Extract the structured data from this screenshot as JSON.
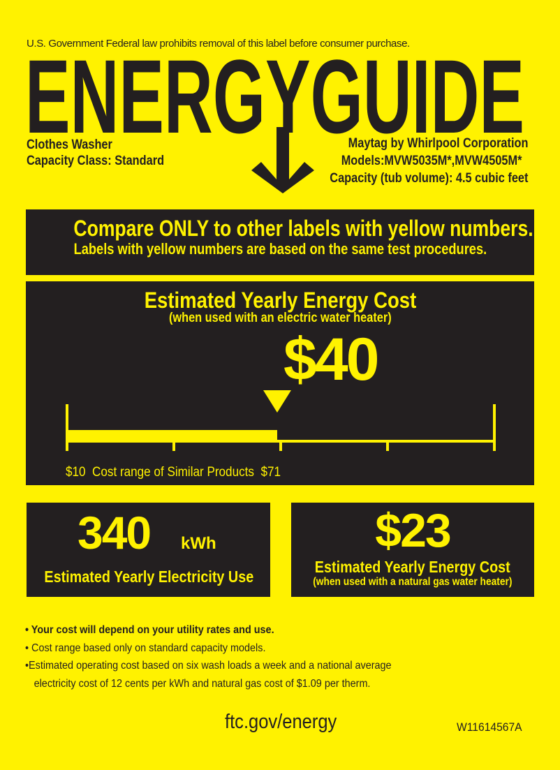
{
  "header": {
    "notice": "U.S. Government  Federal law prohibits removal of this label before consumer purchase.",
    "logo": "ENERGYGUIDE"
  },
  "product": {
    "type": "Clothes Washer",
    "capacity_class": "Capacity Class: Standard",
    "manufacturer": "Maytag by Whirlpool Corporation",
    "models": "Models:MVW5035M*,MVW4505M*",
    "capacity": "Capacity (tub volume): 4.5 cubic feet"
  },
  "compare": {
    "line1": "Compare ONLY to other labels with yellow numbers.",
    "line2": "Labels with yellow numbers are based on the same test procedures."
  },
  "main_cost": {
    "title": "Estimated Yearly Energy Cost",
    "subtitle": "(when used with an electric water heater)",
    "value": "$40",
    "value_number": 40,
    "range_min": 10,
    "range_max": 71,
    "range_min_label": "$10",
    "range_label": "Cost range of Similar Products",
    "range_max_label": "$71"
  },
  "electricity": {
    "value": "340",
    "unit": "kWh",
    "label": "Estimated Yearly Electricity Use"
  },
  "gas_cost": {
    "value": "$23",
    "title": "Estimated Yearly Energy Cost",
    "subtitle": "(when used with a natural gas water heater)"
  },
  "notes": [
    "• Your cost will depend on your utility rates and use.",
    "• Cost range based only on standard capacity models.",
    "•Estimated operating cost based on six wash loads a week and a national average",
    "electricity cost of 12 cents per kWh and natural gas cost of $1.09 per therm."
  ],
  "footer": {
    "url": "ftc.gov/energy",
    "code": "W11614567A"
  },
  "colors": {
    "yellow": "#fff200",
    "dark": "#231f20"
  }
}
